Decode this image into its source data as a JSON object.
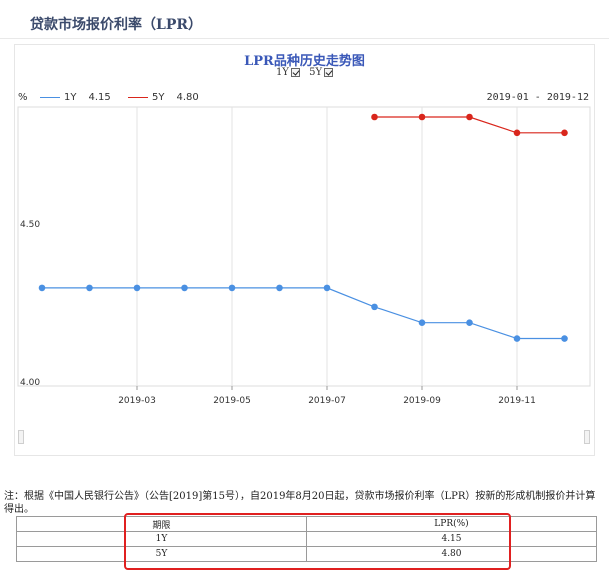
{
  "page": {
    "title": "贷款市场报价利率（LPR）"
  },
  "chart_header": {
    "title": "LPR品种历史走势图",
    "toggles": [
      {
        "label": "1Y",
        "checked": true
      },
      {
        "label": "5Y",
        "checked": true
      }
    ],
    "unit": "%",
    "legend": [
      {
        "label": "1Y",
        "value": "4.15",
        "color": "#4a90e2"
      },
      {
        "label": "5Y",
        "value": "4.80",
        "color": "#d9261c"
      }
    ],
    "date_range": "2019-01 - 2019-12"
  },
  "chart_data": {
    "type": "line",
    "x": [
      "2019-01",
      "2019-02",
      "2019-03",
      "2019-04",
      "2019-05",
      "2019-06",
      "2019-07",
      "2019-08",
      "2019-09",
      "2019-10",
      "2019-11",
      "2019-12"
    ],
    "x_tick_labels": [
      "2019-03",
      "2019-05",
      "2019-07",
      "2019-09",
      "2019-11"
    ],
    "y_tick_labels": [
      "4.50",
      "4.00"
    ],
    "ylim": [
      4.0,
      4.85
    ],
    "grid": true,
    "legend_position": "top-left",
    "series": [
      {
        "name": "1Y",
        "color": "#4a90e2",
        "values": [
          4.31,
          4.31,
          4.31,
          4.31,
          4.31,
          4.31,
          4.31,
          4.25,
          4.2,
          4.2,
          4.15,
          4.15
        ]
      },
      {
        "name": "5Y",
        "color": "#d9261c",
        "values": [
          null,
          null,
          null,
          null,
          null,
          null,
          null,
          4.85,
          4.85,
          4.85,
          4.8,
          4.8
        ]
      }
    ]
  },
  "note": "注：根据《中国人民银行公告》（公告[2019]第15号），自2019年8月20日起，贷款市场报价利率（LPR）按新的形成机制报价并计算得出。",
  "table": {
    "headers": [
      "期限",
      "LPR(%)"
    ],
    "rows": [
      [
        "1Y",
        "4.15"
      ],
      [
        "5Y",
        "4.80"
      ]
    ]
  },
  "highlight_color": "#e02020"
}
